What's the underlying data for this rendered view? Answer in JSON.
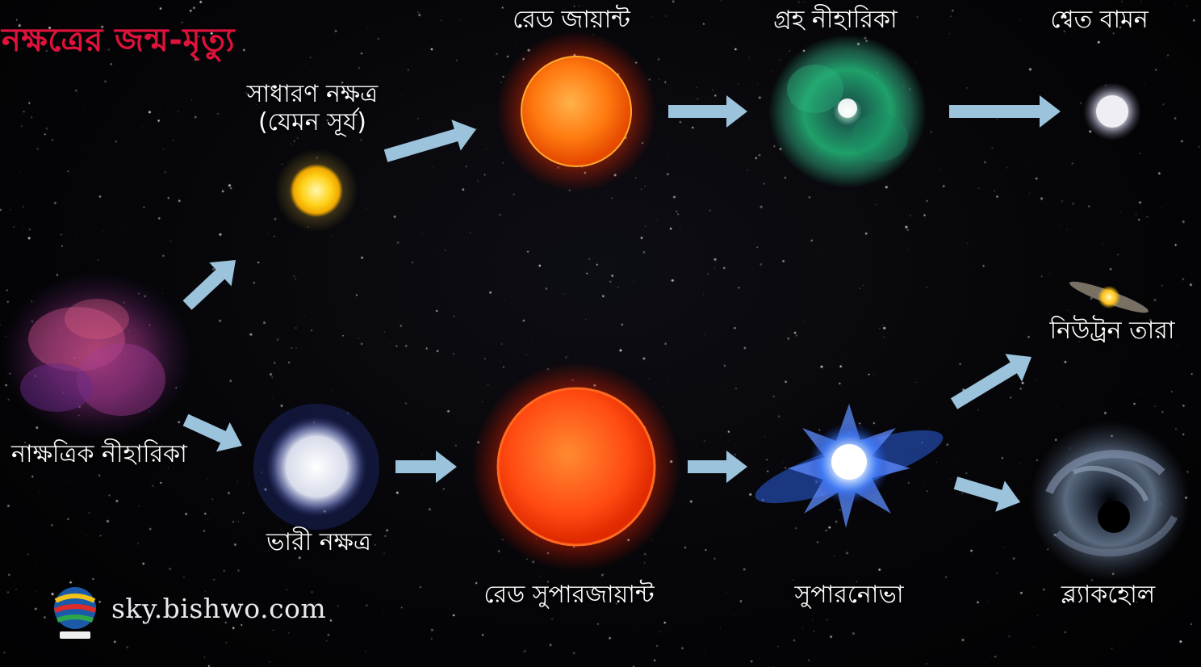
{
  "title": "নক্ষত্রের জন্ম-মৃত্যু",
  "stages": {
    "stellar_nebula": "নাক্ষত্রিক নীহারিকা",
    "average_star_line1": "সাধারণ নক্ষত্র",
    "average_star_line2": "(যেমন সূর্য)",
    "red_giant": "রেড জায়ান্ট",
    "planetary_nebula": "গ্রহ নীহারিকা",
    "white_dwarf": "শ্বেত বামন",
    "massive_star": "ভারী নক্ষত্র",
    "red_supergiant": "রেড সুপারজায়ান্ট",
    "supernova": "সুপারনোভা",
    "neutron_star": "নিউট্রন তারা",
    "black_hole": "ব্ল্যাকহোল"
  },
  "footer": {
    "site": "sky.bishwo.com"
  },
  "colors": {
    "title": "#e0123b",
    "arrow": "#9cc3dc",
    "sun": "#ffd21a",
    "red_giant": "#ff7a10",
    "supergiant": "#ff4a12",
    "planetary_nebula": "#1fa06a",
    "white_dwarf": "#e6e6f0"
  },
  "icons": [
    "arrow-icon",
    "logo-icon"
  ]
}
